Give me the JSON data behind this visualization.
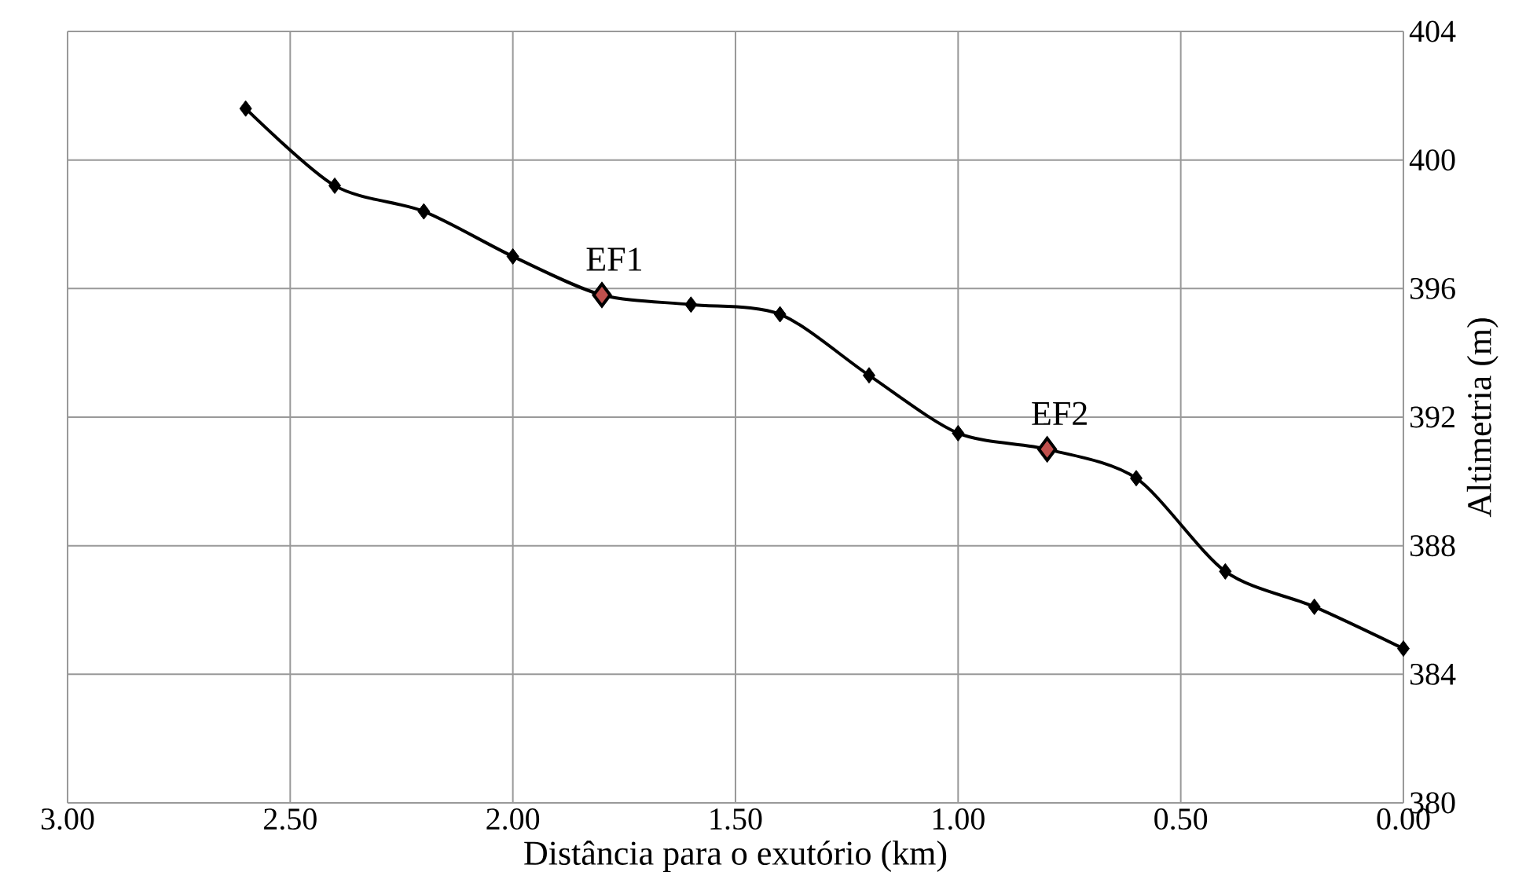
{
  "chart_data": {
    "type": "line",
    "xlabel": "Distância para o exutório (km)",
    "ylabel": "Altimetria (m)",
    "x": [
      2.6,
      2.4,
      2.2,
      2.0,
      1.8,
      1.6,
      1.4,
      1.2,
      1.0,
      0.8,
      0.6,
      0.4,
      0.2,
      0.0
    ],
    "series": [
      {
        "color": "#000000",
        "colors": [
          "#000000",
          "#000000",
          "#000000",
          "#000000",
          "#c0504d",
          "#000000",
          "#000000",
          "#000000",
          "#000000",
          "#c0504d",
          "#000000",
          "#000000",
          "#000000",
          "#000000"
        ],
        "values": [
          401.6,
          399.2,
          398.4,
          397.0,
          395.8,
          395.5,
          395.2,
          393.3,
          391.5,
          391.0,
          390.1,
          387.2,
          386.1,
          384.8
        ]
      }
    ],
    "xlim": [
      3.0,
      0.0
    ],
    "xticks": [
      {
        "value": 3.0,
        "label": "3.00"
      },
      {
        "value": 2.5,
        "label": "2.50"
      },
      {
        "value": 2.0,
        "label": "2.00"
      },
      {
        "value": 1.5,
        "label": "1.50"
      },
      {
        "value": 1.0,
        "label": "1.00"
      },
      {
        "value": 0.5,
        "label": "0.50"
      },
      {
        "value": 0.0,
        "label": "0.00"
      }
    ],
    "ylim": [
      380,
      404
    ],
    "yticks": [
      380,
      384,
      388,
      392,
      396,
      400,
      404
    ],
    "annotations": [
      {
        "text": "EF1",
        "x": 1.8,
        "y": 395.8
      },
      {
        "text": "EF2",
        "x": 0.8,
        "y": 391.0
      }
    ],
    "grid": true,
    "marker": "diamond",
    "line_style": "solid"
  }
}
